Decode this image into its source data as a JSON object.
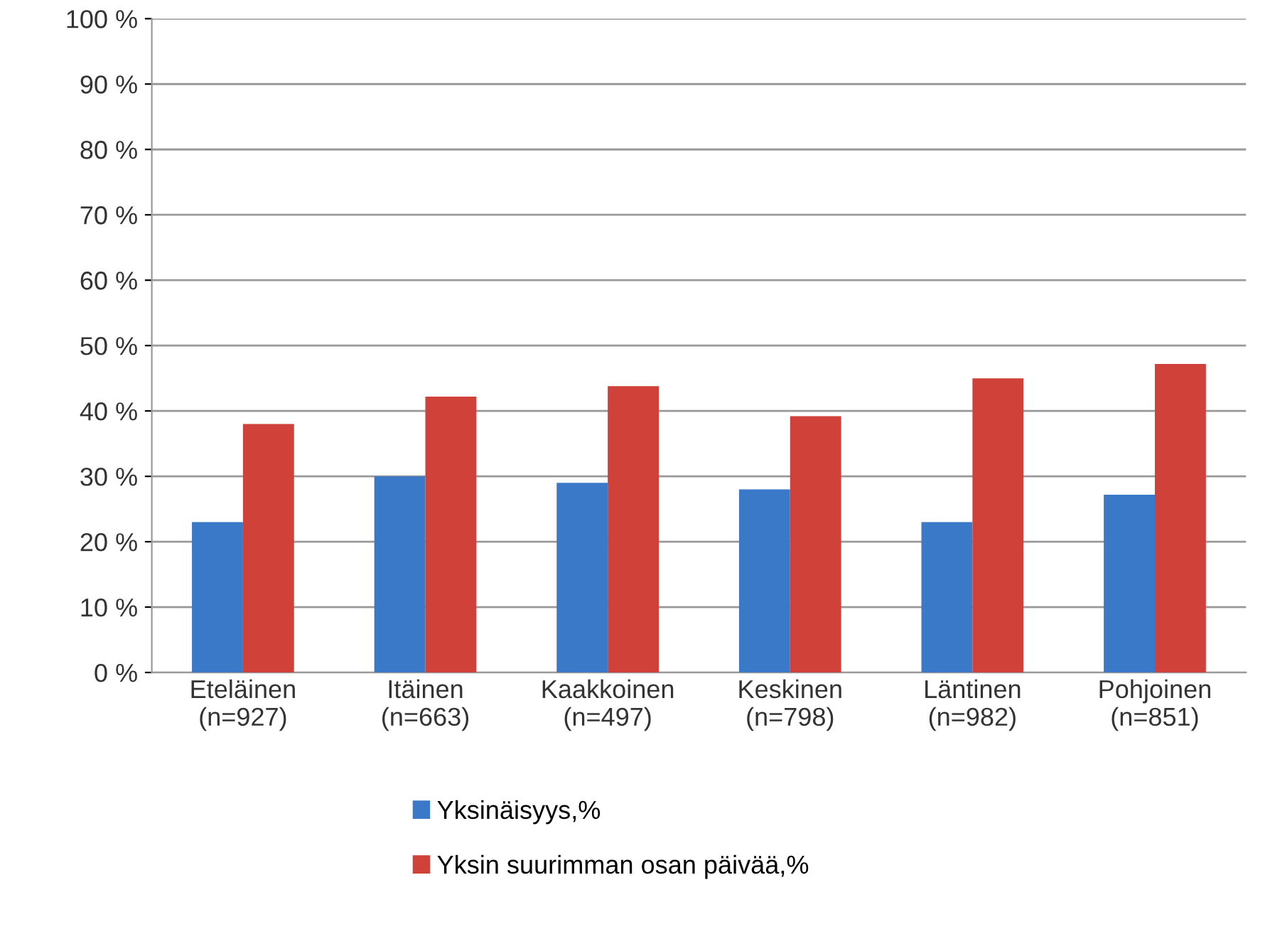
{
  "chart_data": {
    "type": "bar",
    "categories": [
      "Eteläinen\n(n=927)",
      "Itäinen\n(n=663)",
      "Kaakkoinen\n(n=497)",
      "Keskinen\n(n=798)",
      "Läntinen\n(n=982)",
      "Pohjoinen\n(n=851)"
    ],
    "series": [
      {
        "name": "Yksinäisyys,%",
        "color": "#3a78c8",
        "values": [
          23,
          30,
          29,
          28,
          23,
          27.2
        ]
      },
      {
        "name": "Yksin suurimman osan päivää,%",
        "color": "#d0413a",
        "values": [
          38,
          42.2,
          43.8,
          39.2,
          45,
          47.2
        ]
      }
    ],
    "ylim": [
      0,
      100
    ],
    "yticks": [
      {
        "value": 0,
        "label": "0 %"
      },
      {
        "value": 10,
        "label": "10 %"
      },
      {
        "value": 20,
        "label": "20 %"
      },
      {
        "value": 30,
        "label": "30 %"
      },
      {
        "value": 40,
        "label": "40 %"
      },
      {
        "value": 50,
        "label": "50 %"
      },
      {
        "value": 60,
        "label": "60 %"
      },
      {
        "value": 70,
        "label": "70 %"
      },
      {
        "value": 80,
        "label": "80 %"
      },
      {
        "value": 90,
        "label": "90 %"
      },
      {
        "value": 100,
        "label": "100 %"
      }
    ],
    "grid": "y",
    "legend": "bottom"
  }
}
